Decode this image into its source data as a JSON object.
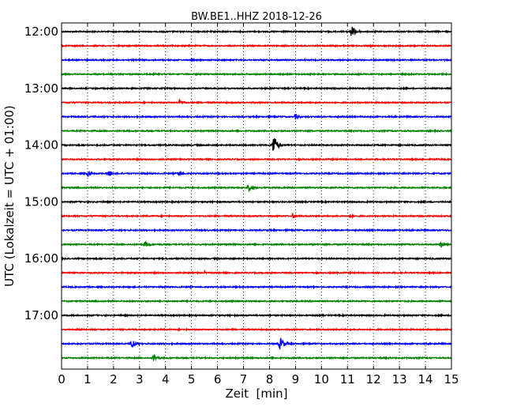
{
  "chart_data": {
    "type": "line",
    "subtype": "dayplot-seismogram",
    "title": "BW.BE1..HHZ 2018-12-26",
    "xlabel": "Zeit  [min]",
    "ylabel": "UTC (Lokalzeit = UTC + 01:00)",
    "xlim": [
      0,
      15
    ],
    "x_ticks": [
      0,
      1,
      2,
      3,
      4,
      5,
      6,
      7,
      8,
      9,
      10,
      11,
      12,
      13,
      14,
      15
    ],
    "y_tick_labels": [
      "12:00",
      "13:00",
      "14:00",
      "15:00",
      "16:00",
      "17:00"
    ],
    "trace_interval_minutes": 15,
    "grid": "vertical dotted",
    "trace_colors": [
      "#000000",
      "#ff0000",
      "#0000ff",
      "#008000"
    ],
    "traces": [
      {
        "start": "12:00",
        "events": [
          {
            "t": 11.15,
            "amp": 0.9,
            "width": 0.55
          }
        ]
      },
      {
        "start": "12:15",
        "events": []
      },
      {
        "start": "12:30",
        "events": []
      },
      {
        "start": "12:45",
        "events": [
          {
            "t": 13.35,
            "amp": 0.3,
            "width": 0.3
          }
        ]
      },
      {
        "start": "13:00",
        "events": [
          {
            "t": 7.2,
            "amp": 0.1,
            "width": 0.2
          }
        ]
      },
      {
        "start": "13:15",
        "events": [
          {
            "t": 4.55,
            "amp": 0.5,
            "width": 0.45
          }
        ]
      },
      {
        "start": "13:30",
        "events": [
          {
            "t": 9.0,
            "amp": 0.45,
            "width": 0.45
          }
        ]
      },
      {
        "start": "13:45",
        "events": []
      },
      {
        "start": "14:00",
        "events": [
          {
            "t": 8.15,
            "amp": 1.6,
            "width": 0.45
          }
        ]
      },
      {
        "start": "14:15",
        "events": []
      },
      {
        "start": "14:30",
        "events": [
          {
            "t": 1.0,
            "amp": 0.35,
            "width": 0.6
          },
          {
            "t": 1.8,
            "amp": 0.6,
            "width": 0.4
          },
          {
            "t": 4.5,
            "amp": 0.35,
            "width": 0.55
          },
          {
            "t": 9.0,
            "amp": 0.15,
            "width": 0.4
          }
        ]
      },
      {
        "start": "14:45",
        "events": [
          {
            "t": 7.2,
            "amp": 0.6,
            "width": 0.55
          }
        ]
      },
      {
        "start": "15:00",
        "events": [
          {
            "t": 11.9,
            "amp": 0.12,
            "width": 0.3
          }
        ]
      },
      {
        "start": "15:15",
        "events": [
          {
            "t": 8.9,
            "amp": 0.45,
            "width": 0.35
          },
          {
            "t": 11.1,
            "amp": 0.25,
            "width": 0.6
          }
        ]
      },
      {
        "start": "15:30",
        "events": [
          {
            "t": 5.4,
            "amp": 0.15,
            "width": 0.4
          }
        ]
      },
      {
        "start": "15:45",
        "events": [
          {
            "t": 3.2,
            "amp": 0.45,
            "width": 0.6
          },
          {
            "t": 14.6,
            "amp": 0.45,
            "width": 0.5
          }
        ]
      },
      {
        "start": "16:00",
        "events": []
      },
      {
        "start": "16:15",
        "events": [
          {
            "t": 5.5,
            "amp": 0.45,
            "width": 0.08
          }
        ]
      },
      {
        "start": "16:30",
        "events": []
      },
      {
        "start": "16:45",
        "events": [
          {
            "t": 5.0,
            "amp": 0.35,
            "width": 0.1
          }
        ]
      },
      {
        "start": "17:00",
        "events": []
      },
      {
        "start": "17:15",
        "events": []
      },
      {
        "start": "17:30",
        "events": [
          {
            "t": 2.7,
            "amp": 0.7,
            "width": 0.55
          },
          {
            "t": 8.4,
            "amp": 0.9,
            "width": 0.6
          }
        ]
      },
      {
        "start": "17:45",
        "events": [
          {
            "t": 3.55,
            "amp": 0.65,
            "width": 0.45
          }
        ]
      }
    ]
  }
}
